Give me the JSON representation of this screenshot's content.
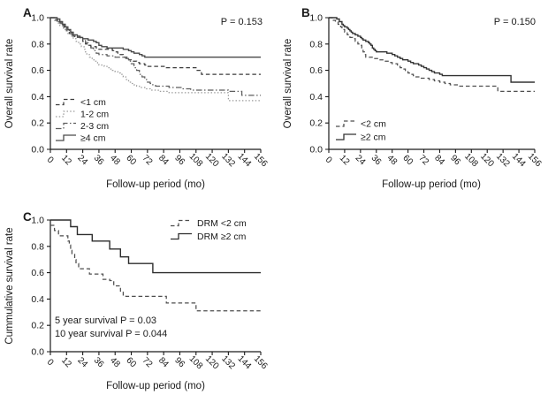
{
  "figure": {
    "background": "#ffffff",
    "text_color": "#1a1a1a",
    "axis_color": "#1a1a1a"
  },
  "chart_data": [
    {
      "type": "line",
      "subtype": "kaplan-meier-step",
      "panel": "A",
      "xlabel": "Follow-up period (mo)",
      "ylabel": "Overall survival rate",
      "xlim": [
        0,
        156
      ],
      "ylim": [
        0.0,
        1.0
      ],
      "xticks": [
        0,
        12,
        24,
        36,
        48,
        60,
        72,
        84,
        96,
        108,
        120,
        132,
        144,
        156
      ],
      "yticks": [
        0.0,
        0.2,
        0.4,
        0.6,
        0.8,
        1.0
      ],
      "annotation": "P = 0.153",
      "legend_position": "bottom-left",
      "grid": false,
      "series": [
        {
          "name": "<1 cm",
          "style": "dashed",
          "color": "#3d3d3d",
          "dash": "4.5 3",
          "steps": [
            [
              0,
              1.0
            ],
            [
              4,
              0.98
            ],
            [
              6,
              0.96
            ],
            [
              8,
              0.94
            ],
            [
              10,
              0.92
            ],
            [
              12,
              0.9
            ],
            [
              14,
              0.88
            ],
            [
              16,
              0.86
            ],
            [
              18,
              0.85
            ],
            [
              22,
              0.84
            ],
            [
              24,
              0.82
            ],
            [
              26,
              0.8
            ],
            [
              28,
              0.79
            ],
            [
              30,
              0.78
            ],
            [
              34,
              0.77
            ],
            [
              36,
              0.76
            ],
            [
              46,
              0.75
            ],
            [
              48,
              0.74
            ],
            [
              50,
              0.72
            ],
            [
              54,
              0.7
            ],
            [
              58,
              0.68
            ],
            [
              60,
              0.67
            ],
            [
              64,
              0.66
            ],
            [
              66,
              0.65
            ],
            [
              70,
              0.64
            ],
            [
              72,
              0.63
            ],
            [
              86,
              0.62
            ],
            [
              108,
              0.6
            ],
            [
              112,
              0.57
            ],
            [
              156,
              0.57
            ]
          ]
        },
        {
          "name": "1-2 cm",
          "style": "dotted",
          "color": "#9b9b9b",
          "dash": "1.5 2.2",
          "steps": [
            [
              0,
              1.0
            ],
            [
              3,
              0.98
            ],
            [
              5,
              0.96
            ],
            [
              7,
              0.94
            ],
            [
              9,
              0.92
            ],
            [
              11,
              0.9
            ],
            [
              13,
              0.88
            ],
            [
              15,
              0.86
            ],
            [
              17,
              0.84
            ],
            [
              19,
              0.82
            ],
            [
              21,
              0.8
            ],
            [
              23,
              0.78
            ],
            [
              25,
              0.76
            ],
            [
              26,
              0.74
            ],
            [
              27,
              0.72
            ],
            [
              29,
              0.7
            ],
            [
              31,
              0.68
            ],
            [
              33,
              0.67
            ],
            [
              35,
              0.65
            ],
            [
              36,
              0.64
            ],
            [
              40,
              0.63
            ],
            [
              42,
              0.62
            ],
            [
              44,
              0.61
            ],
            [
              46,
              0.6
            ],
            [
              48,
              0.59
            ],
            [
              50,
              0.58
            ],
            [
              52,
              0.57
            ],
            [
              54,
              0.55
            ],
            [
              56,
              0.53
            ],
            [
              58,
              0.51
            ],
            [
              60,
              0.5
            ],
            [
              62,
              0.49
            ],
            [
              64,
              0.48
            ],
            [
              66,
              0.47
            ],
            [
              70,
              0.46
            ],
            [
              74,
              0.45
            ],
            [
              80,
              0.44
            ],
            [
              88,
              0.43
            ],
            [
              132,
              0.37
            ],
            [
              156,
              0.37
            ]
          ]
        },
        {
          "name": "2-3 cm",
          "style": "dash-dot",
          "color": "#5e5e5e",
          "dash": "6.5 2.5 1.5 2.5",
          "steps": [
            [
              0,
              1.0
            ],
            [
              4,
              0.98
            ],
            [
              6,
              0.97
            ],
            [
              8,
              0.95
            ],
            [
              10,
              0.93
            ],
            [
              12,
              0.91
            ],
            [
              14,
              0.89
            ],
            [
              16,
              0.87
            ],
            [
              18,
              0.86
            ],
            [
              20,
              0.85
            ],
            [
              24,
              0.83
            ],
            [
              26,
              0.81
            ],
            [
              28,
              0.79
            ],
            [
              30,
              0.77
            ],
            [
              32,
              0.75
            ],
            [
              34,
              0.73
            ],
            [
              36,
              0.72
            ],
            [
              42,
              0.71
            ],
            [
              48,
              0.7
            ],
            [
              56,
              0.69
            ],
            [
              58,
              0.67
            ],
            [
              60,
              0.65
            ],
            [
              62,
              0.62
            ],
            [
              64,
              0.6
            ],
            [
              66,
              0.57
            ],
            [
              68,
              0.55
            ],
            [
              70,
              0.53
            ],
            [
              72,
              0.51
            ],
            [
              74,
              0.5
            ],
            [
              76,
              0.49
            ],
            [
              78,
              0.48
            ],
            [
              88,
              0.47
            ],
            [
              98,
              0.46
            ],
            [
              104,
              0.45
            ],
            [
              132,
              0.44
            ],
            [
              142,
              0.41
            ],
            [
              156,
              0.41
            ]
          ]
        },
        {
          "name": "≥4 cm",
          "style": "solid",
          "color": "#4a4a4a",
          "dash": null,
          "steps": [
            [
              0,
              1.0
            ],
            [
              5,
              0.99
            ],
            [
              7,
              0.97
            ],
            [
              9,
              0.95
            ],
            [
              11,
              0.93
            ],
            [
              13,
              0.91
            ],
            [
              15,
              0.89
            ],
            [
              17,
              0.87
            ],
            [
              20,
              0.86
            ],
            [
              22,
              0.85
            ],
            [
              24,
              0.84
            ],
            [
              28,
              0.83
            ],
            [
              32,
              0.82
            ],
            [
              34,
              0.81
            ],
            [
              36,
              0.79
            ],
            [
              38,
              0.78
            ],
            [
              42,
              0.77
            ],
            [
              54,
              0.76
            ],
            [
              58,
              0.75
            ],
            [
              60,
              0.74
            ],
            [
              62,
              0.73
            ],
            [
              66,
              0.72
            ],
            [
              68,
              0.71
            ],
            [
              70,
              0.7
            ],
            [
              156,
              0.7
            ]
          ]
        }
      ]
    },
    {
      "type": "line",
      "subtype": "kaplan-meier-step",
      "panel": "B",
      "xlabel": "Follow-up period (mo)",
      "ylabel": "Overall survival rate",
      "xlim": [
        0,
        156
      ],
      "ylim": [
        0.0,
        1.0
      ],
      "xticks": [
        0,
        12,
        24,
        36,
        48,
        60,
        72,
        84,
        96,
        108,
        120,
        132,
        144,
        156
      ],
      "yticks": [
        0.0,
        0.2,
        0.4,
        0.6,
        0.8,
        1.0
      ],
      "annotation": "P = 0.150",
      "legend_position": "bottom-left",
      "grid": false,
      "series": [
        {
          "name": "<2 cm",
          "style": "dashed",
          "color": "#4d4d4d",
          "dash": "4.5 3",
          "steps": [
            [
              0,
              1.0
            ],
            [
              3,
              0.98
            ],
            [
              5,
              0.97
            ],
            [
              7,
              0.95
            ],
            [
              9,
              0.93
            ],
            [
              10,
              0.91
            ],
            [
              12,
              0.89
            ],
            [
              14,
              0.87
            ],
            [
              16,
              0.85
            ],
            [
              18,
              0.84
            ],
            [
              20,
              0.82
            ],
            [
              22,
              0.8
            ],
            [
              24,
              0.79
            ],
            [
              25,
              0.77
            ],
            [
              26,
              0.74
            ],
            [
              27,
              0.72
            ],
            [
              28,
              0.7
            ],
            [
              34,
              0.69
            ],
            [
              38,
              0.68
            ],
            [
              42,
              0.67
            ],
            [
              46,
              0.66
            ],
            [
              48,
              0.65
            ],
            [
              52,
              0.63
            ],
            [
              54,
              0.62
            ],
            [
              56,
              0.61
            ],
            [
              58,
              0.59
            ],
            [
              60,
              0.58
            ],
            [
              62,
              0.57
            ],
            [
              64,
              0.56
            ],
            [
              66,
              0.55
            ],
            [
              70,
              0.54
            ],
            [
              76,
              0.53
            ],
            [
              80,
              0.52
            ],
            [
              84,
              0.51
            ],
            [
              88,
              0.5
            ],
            [
              92,
              0.49
            ],
            [
              98,
              0.48
            ],
            [
              128,
              0.44
            ],
            [
              156,
              0.44
            ]
          ]
        },
        {
          "name": "≥2 cm",
          "style": "solid",
          "color": "#333333",
          "dash": null,
          "steps": [
            [
              0,
              1.0
            ],
            [
              6,
              0.99
            ],
            [
              8,
              0.97
            ],
            [
              10,
              0.95
            ],
            [
              11,
              0.94
            ],
            [
              12,
              0.93
            ],
            [
              14,
              0.92
            ],
            [
              15,
              0.91
            ],
            [
              16,
              0.9
            ],
            [
              17,
              0.89
            ],
            [
              18,
              0.88
            ],
            [
              20,
              0.87
            ],
            [
              22,
              0.86
            ],
            [
              24,
              0.85
            ],
            [
              25,
              0.84
            ],
            [
              26,
              0.83
            ],
            [
              28,
              0.82
            ],
            [
              30,
              0.81
            ],
            [
              31,
              0.8
            ],
            [
              32,
              0.79
            ],
            [
              33,
              0.77
            ],
            [
              34,
              0.76
            ],
            [
              35,
              0.75
            ],
            [
              36,
              0.74
            ],
            [
              44,
              0.73
            ],
            [
              48,
              0.72
            ],
            [
              50,
              0.71
            ],
            [
              52,
              0.7
            ],
            [
              54,
              0.69
            ],
            [
              56,
              0.68
            ],
            [
              60,
              0.67
            ],
            [
              62,
              0.66
            ],
            [
              64,
              0.65
            ],
            [
              68,
              0.64
            ],
            [
              70,
              0.63
            ],
            [
              72,
              0.62
            ],
            [
              74,
              0.61
            ],
            [
              76,
              0.6
            ],
            [
              78,
              0.59
            ],
            [
              80,
              0.58
            ],
            [
              84,
              0.57
            ],
            [
              86,
              0.56
            ],
            [
              138,
              0.51
            ],
            [
              156,
              0.51
            ]
          ]
        }
      ]
    },
    {
      "type": "line",
      "subtype": "kaplan-meier-step",
      "panel": "C",
      "xlabel": "Follow-up period (mo)",
      "ylabel": "Cummulative survival rate",
      "xlim": [
        0,
        156
      ],
      "ylim": [
        0.0,
        1.0
      ],
      "xticks": [
        0,
        12,
        24,
        36,
        48,
        60,
        72,
        84,
        96,
        108,
        120,
        132,
        144,
        156
      ],
      "yticks": [
        0.0,
        0.2,
        0.4,
        0.6,
        0.8,
        1.0
      ],
      "annotation": null,
      "stats_notes": [
        "5 year survival P = 0.03",
        "10 year survival P = 0.044"
      ],
      "legend_position": "top-right",
      "grid": false,
      "series": [
        {
          "name": "DRM <2 cm",
          "style": "dashed",
          "color": "#4d4d4d",
          "dash": "4.5 3",
          "steps": [
            [
              0,
              0.96
            ],
            [
              3,
              0.92
            ],
            [
              6,
              0.88
            ],
            [
              13,
              0.84
            ],
            [
              14,
              0.81
            ],
            [
              15,
              0.77
            ],
            [
              16,
              0.74
            ],
            [
              18,
              0.7
            ],
            [
              19,
              0.67
            ],
            [
              21,
              0.63
            ],
            [
              29,
              0.59
            ],
            [
              39,
              0.55
            ],
            [
              44,
              0.54
            ],
            [
              47,
              0.5
            ],
            [
              52,
              0.46
            ],
            [
              54,
              0.43
            ],
            [
              56,
              0.42
            ],
            [
              86,
              0.37
            ],
            [
              108,
              0.31
            ],
            [
              156,
              0.31
            ]
          ]
        },
        {
          "name": "DRM ≥2 cm",
          "style": "solid",
          "color": "#2d2d2d",
          "dash": null,
          "steps": [
            [
              0,
              1.0
            ],
            [
              15,
              0.95
            ],
            [
              20,
              0.89
            ],
            [
              31,
              0.84
            ],
            [
              44,
              0.78
            ],
            [
              52,
              0.72
            ],
            [
              58,
              0.67
            ],
            [
              76,
              0.6
            ],
            [
              156,
              0.6
            ]
          ]
        }
      ]
    }
  ]
}
